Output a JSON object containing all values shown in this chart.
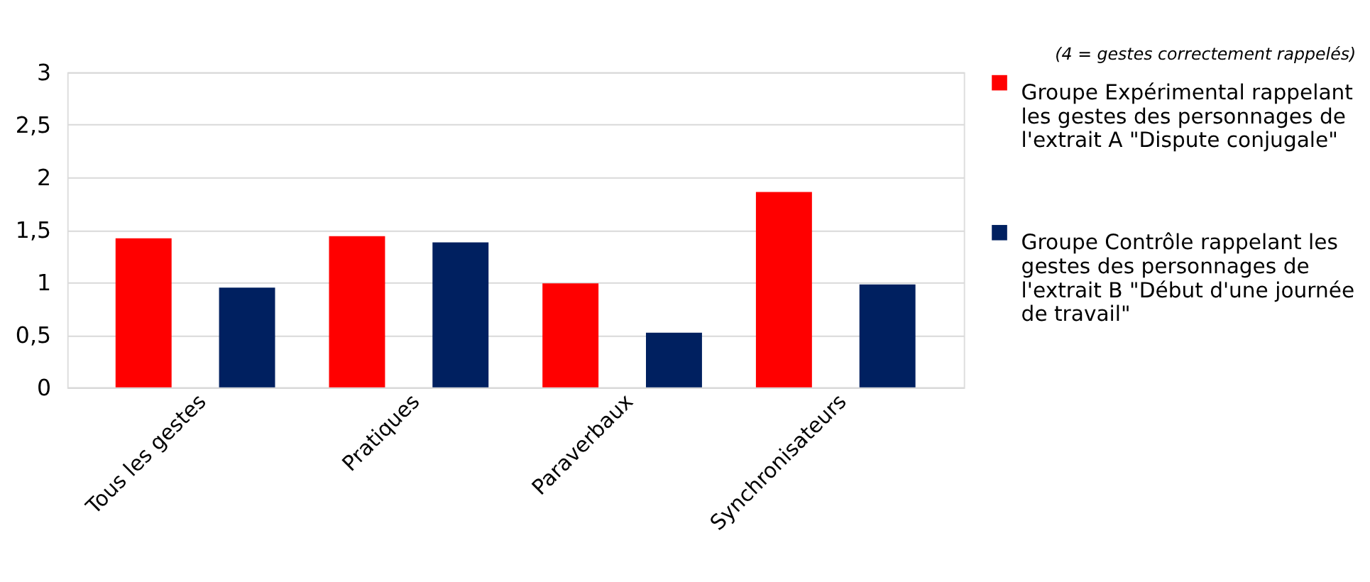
{
  "chart_data": {
    "type": "bar",
    "categories": [
      "Tous les gestes",
      "Pratiques",
      "Paraverbaux",
      "Synchronisateurs"
    ],
    "series": [
      {
        "name": "Groupe Expérimental rappelant les gestes des personnages de l'extrait A \"Dispute conjugale\"",
        "color": "#ff0000",
        "values": [
          1.42,
          1.44,
          0.99,
          1.86
        ]
      },
      {
        "name": "Groupe Contrôle rappelant les gestes des personnages de l'extrait B \"Début d'une journée de travail\"",
        "color": "#002060",
        "values": [
          0.95,
          1.38,
          0.52,
          0.98
        ]
      }
    ],
    "annotations": [
      "(4 = gestes correctement rappelés)"
    ],
    "ylim": [
      0,
      3
    ],
    "yticks": [
      0,
      {
        "value": 0.5,
        "label": "0,5"
      },
      1,
      {
        "value": 1.5,
        "label": "1,5"
      },
      2,
      {
        "value": 2.5,
        "label": "2,5"
      },
      3
    ],
    "grid": "y",
    "legend": "right"
  }
}
